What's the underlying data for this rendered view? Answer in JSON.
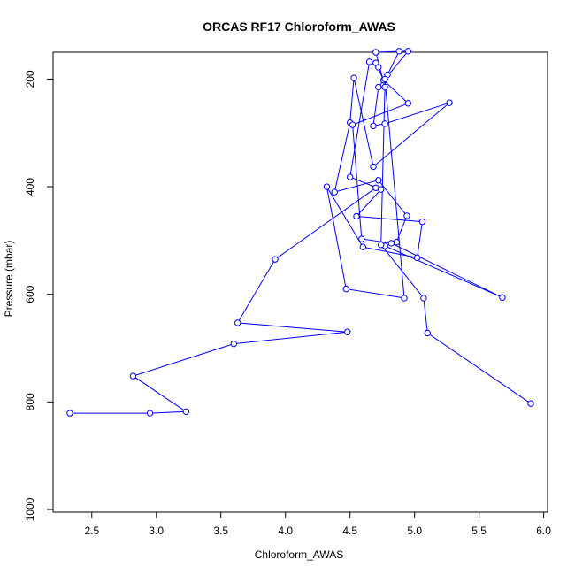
{
  "chart_data": {
    "type": "line",
    "title": "ORCAS RF17 Chloroform_AWAS",
    "xlabel": "Chloroform_AWAS",
    "ylabel": "Pressure (mbar)",
    "xlim": [
      2.2,
      6.03
    ],
    "ylim": [
      1005,
      150
    ],
    "y_reversed": true,
    "x_ticks": [
      2.5,
      3.0,
      3.5,
      4.0,
      4.5,
      5.0,
      5.5,
      6.0
    ],
    "x_tick_labels": [
      "2.5",
      "3.0",
      "3.5",
      "4.0",
      "4.5",
      "5.0",
      "5.5",
      "6.0"
    ],
    "y_ticks": [
      200,
      400,
      600,
      800,
      1000
    ],
    "y_tick_labels": [
      "200",
      "400",
      "600",
      "800",
      "1000"
    ],
    "grid": false,
    "series": [
      {
        "color": "#0000ff",
        "marker": "open-circle",
        "x": [
          4.88,
          4.79,
          4.72,
          4.68,
          4.77,
          5.27,
          4.68,
          4.53,
          4.5,
          4.38,
          4.72,
          4.94,
          4.86,
          4.77,
          5.68,
          4.82,
          4.59,
          4.52,
          4.95,
          4.76,
          4.7,
          4.72,
          4.65,
          4.5,
          4.74,
          4.55,
          5.06,
          5.02,
          4.6,
          4.32,
          4.47,
          4.92,
          4.77,
          4.95,
          4.7,
          4.77,
          4.74,
          5.07,
          5.1,
          5.9
        ],
        "y": [
          148,
          192,
          215,
          287,
          283,
          244,
          363,
          198,
          281,
          410,
          388,
          454,
          503,
          510,
          606,
          505,
          497,
          285,
          245,
          202,
          170,
          178,
          168,
          382,
          405,
          455,
          465,
          532,
          512,
          400,
          590,
          607,
          200,
          148,
          150,
          215,
          508,
          607,
          672,
          803
        ]
      },
      {
        "color": "#0000ff",
        "marker": "open-circle",
        "x": [
          4.7,
          3.92,
          3.63,
          4.48,
          3.6,
          2.82,
          3.23,
          2.95,
          2.33
        ],
        "y": [
          402,
          535,
          653,
          670,
          692,
          752,
          818,
          821,
          821
        ]
      }
    ]
  }
}
